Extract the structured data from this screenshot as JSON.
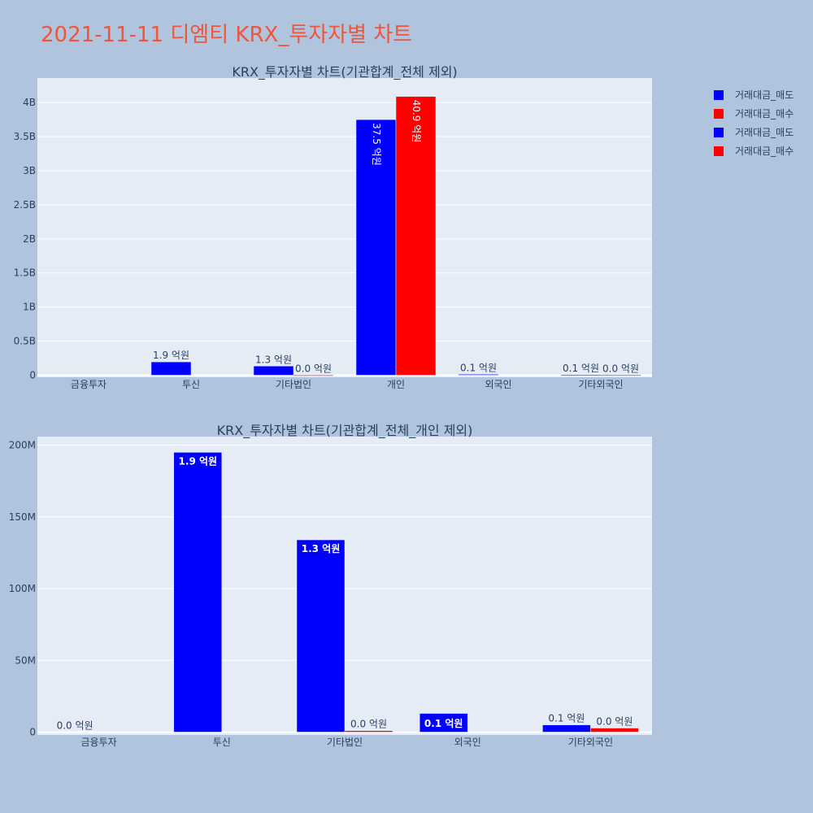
{
  "page_title": "2021-11-11 디엠티 KRX_투자자별 차트",
  "legend": [
    {
      "label": "거래대금_매도",
      "color": "#0000ff"
    },
    {
      "label": "거래대금_매수",
      "color": "#ff0000"
    },
    {
      "label": "거래대금_매도",
      "color": "#0000ff"
    },
    {
      "label": "거래대금_매수",
      "color": "#ff0000"
    }
  ],
  "chart_data": [
    {
      "type": "bar",
      "title": "KRX_투자자별 차트(기관합계_전체 제외)",
      "categories": [
        "금융투자",
        "투신",
        "기타법인",
        "개인",
        "외국인",
        "기타외국인"
      ],
      "series": [
        {
          "name": "거래대금_매도",
          "color": "#0000ff",
          "values": [
            0,
            195000000,
            134000000,
            3750000000,
            13000000,
            5000000
          ],
          "labels": [
            "",
            "1.9 억원",
            "1.3 억원",
            "37.5 억원",
            "0.1 억원",
            "0.1 억원"
          ]
        },
        {
          "name": "거래대금_매수",
          "color": "#ff0000",
          "values": [
            0,
            0,
            1000000,
            4090000000,
            0,
            2800000
          ],
          "labels": [
            "",
            "",
            "0.0 억원",
            "40.9 억원",
            "",
            "0.0 억원"
          ]
        }
      ],
      "ylim": [
        -30000000,
        4360000000
      ],
      "yticks": [
        0,
        500000000,
        1000000000,
        1500000000,
        2000000000,
        2500000000,
        3000000000,
        3500000000,
        4000000000
      ],
      "ytick_labels": [
        "0",
        "0.5B",
        "1B",
        "1.5B",
        "2B",
        "2.5B",
        "3B",
        "3.5B",
        "4B"
      ],
      "grid": true
    },
    {
      "type": "bar",
      "title": "KRX_투자자별 차트(기관합계_전체_개인 제외)",
      "categories": [
        "금융투자",
        "투신",
        "기타법인",
        "외국인",
        "기타외국인"
      ],
      "series": [
        {
          "name": "거래대금_매도",
          "color": "#0000ff",
          "values": [
            0,
            195000000,
            134000000,
            13000000,
            5000000
          ],
          "labels": [
            "0.0 억원",
            "1.9 억원",
            "1.3 억원",
            "0.1 억원",
            "0.1 억원"
          ]
        },
        {
          "name": "거래대금_매수",
          "color": "#ff0000",
          "values": [
            0,
            0,
            1000000,
            0,
            2800000
          ],
          "labels": [
            "",
            "",
            "0.0 억원",
            "",
            "0.0 억원"
          ]
        }
      ],
      "ylim": [
        -2000000,
        206000000
      ],
      "yticks": [
        0,
        50000000,
        100000000,
        150000000,
        200000000
      ],
      "ytick_labels": [
        "0",
        "50M",
        "100M",
        "150M",
        "200M"
      ],
      "grid": true
    }
  ]
}
